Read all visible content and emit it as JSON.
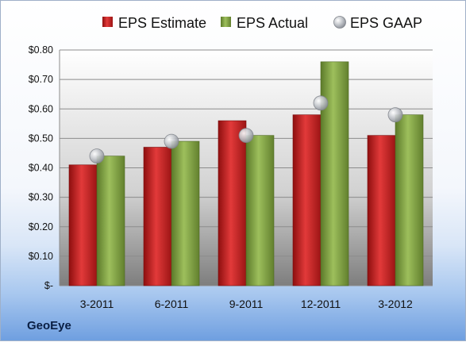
{
  "company": "GeoEye",
  "chart_data": {
    "type": "bar",
    "title": "",
    "xlabel": "",
    "ylabel": "",
    "categories": [
      "3-2011",
      "6-2011",
      "9-2011",
      "12-2011",
      "3-2012"
    ],
    "series": [
      {
        "name": "EPS Estimate",
        "type": "bar",
        "color": "#cc1f1f",
        "values": [
          0.41,
          0.47,
          0.56,
          0.58,
          0.51
        ]
      },
      {
        "name": "EPS Actual",
        "type": "bar",
        "color": "#86a84b",
        "values": [
          0.44,
          0.49,
          0.51,
          0.76,
          0.58
        ]
      },
      {
        "name": "EPS GAAP",
        "type": "scatter",
        "color": "#b8bcc4",
        "values": [
          0.44,
          0.49,
          0.51,
          0.62,
          0.58
        ]
      }
    ],
    "ylim": [
      0,
      0.8
    ],
    "yticks": [
      0,
      0.1,
      0.2,
      0.3,
      0.4,
      0.5,
      0.6,
      0.7,
      0.8
    ],
    "ytick_labels": [
      "$-",
      "$0.10",
      "$0.20",
      "$0.30",
      "$0.40",
      "$0.50",
      "$0.60",
      "$0.70",
      "$0.80"
    ],
    "grid": true,
    "legend": "top"
  }
}
